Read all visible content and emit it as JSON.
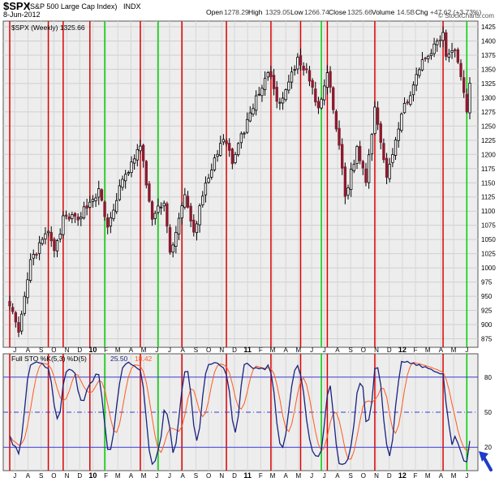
{
  "header": {
    "symbol": "$SPX",
    "name": "(S&P 500 Large Cap Index)",
    "exchange": "INDX",
    "date": "8-Jun-2012",
    "open_label": "Open",
    "open": "1278.29",
    "high_label": "High",
    "high": "1329.05",
    "low_label": "Low",
    "low": "1266.74",
    "close_label": "Close",
    "close": "1325.66",
    "volume_label": "Volume",
    "volume": "14.5B",
    "chg_label": "Chg",
    "chg": "+47.62 (+3.73%)",
    "chg_arrow": "▲",
    "watermark": "© StockCharts.com"
  },
  "price_legend": {
    "label": "$SPX (Weekly) 1325.66"
  },
  "sto_legend": {
    "label": "Full STO %K(5,3) %D(5)",
    "k_value": "25.50",
    "d_value": "18.42"
  },
  "colors": {
    "up_candle": "#ffffff",
    "down_candle": "#8b1a2e",
    "red_line": "#dd0000",
    "green_line": "#00cc00",
    "k_line": "#1a237e",
    "d_line": "#ff5a1e",
    "arrow": "#1e3cc8"
  },
  "chart_data": {
    "type": "candlestick",
    "price_panel": {
      "ylim": [
        860,
        1435
      ],
      "y_ticks": [
        875,
        900,
        925,
        950,
        975,
        1000,
        1025,
        1050,
        1075,
        1100,
        1125,
        1150,
        1175,
        1200,
        1225,
        1250,
        1275,
        1300,
        1325,
        1350,
        1375,
        1400,
        1425
      ],
      "path_dates": [
        "2009-06-19",
        "2009-07-10",
        "2009-08-07",
        "2009-09-18",
        "2009-10-02",
        "2009-10-23",
        "2009-11-27",
        "2010-01-15",
        "2010-02-05",
        "2010-03-05",
        "2010-04-23",
        "2010-05-21",
        "2010-06-18",
        "2010-07-02",
        "2010-08-06",
        "2010-08-27",
        "2010-09-24",
        "2010-11-05",
        "2010-11-26",
        "2011-01-14",
        "2011-02-18",
        "2011-03-18",
        "2011-04-29",
        "2011-05-27",
        "2011-06-17",
        "2011-07-08",
        "2011-08-12",
        "2011-08-19",
        "2011-09-16",
        "2011-10-07",
        "2011-10-28",
        "2011-11-25",
        "2012-01-06",
        "2012-02-17",
        "2012-04-06",
        "2012-04-13",
        "2012-05-04",
        "2012-06-01",
        "2012-06-08"
      ],
      "path_closes": [
        940,
        880,
        1010,
        1065,
        1025,
        1085,
        1090,
        1135,
        1070,
        1140,
        1215,
        1085,
        1120,
        1025,
        1125,
        1060,
        1150,
        1225,
        1190,
        1285,
        1345,
        1285,
        1365,
        1335,
        1275,
        1345,
        1180,
        1125,
        1210,
        1155,
        1285,
        1165,
        1285,
        1360,
        1410,
        1375,
        1390,
        1280,
        1325.66
      ]
    },
    "stochastic_panel": {
      "ylim": [
        0,
        100
      ],
      "y_ticks": [
        20,
        50,
        80
      ],
      "horizontal_lines": [
        20,
        50,
        80
      ],
      "k_value": 25.5,
      "d_value": 18.42
    },
    "x_axis": {
      "start_date": "2009-06-19",
      "end_date": "2012-06-08",
      "ticks": [
        {
          "label": "J",
          "date": "2009-07-01"
        },
        {
          "label": "A",
          "date": "2009-08-01"
        },
        {
          "label": "S",
          "date": "2009-09-01"
        },
        {
          "label": "O",
          "date": "2009-10-01"
        },
        {
          "label": "N",
          "date": "2009-11-01"
        },
        {
          "label": "D",
          "date": "2009-12-01"
        },
        {
          "label": "10",
          "date": "2010-01-01",
          "bold": true
        },
        {
          "label": "F",
          "date": "2010-02-01"
        },
        {
          "label": "M",
          "date": "2010-03-01"
        },
        {
          "label": "A",
          "date": "2010-04-01"
        },
        {
          "label": "M",
          "date": "2010-05-01"
        },
        {
          "label": "J",
          "date": "2010-06-01"
        },
        {
          "label": "J",
          "date": "2010-07-01"
        },
        {
          "label": "A",
          "date": "2010-08-01"
        },
        {
          "label": "S",
          "date": "2010-09-01"
        },
        {
          "label": "O",
          "date": "2010-10-01"
        },
        {
          "label": "N",
          "date": "2010-11-01"
        },
        {
          "label": "D",
          "date": "2010-12-01"
        },
        {
          "label": "11",
          "date": "2011-01-01",
          "bold": true
        },
        {
          "label": "F",
          "date": "2011-02-01"
        },
        {
          "label": "M",
          "date": "2011-03-01"
        },
        {
          "label": "A",
          "date": "2011-04-01"
        },
        {
          "label": "M",
          "date": "2011-05-01"
        },
        {
          "label": "J",
          "date": "2011-06-01"
        },
        {
          "label": "J",
          "date": "2011-07-01"
        },
        {
          "label": "A",
          "date": "2011-08-01"
        },
        {
          "label": "S",
          "date": "2011-09-01"
        },
        {
          "label": "O",
          "date": "2011-10-01"
        },
        {
          "label": "N",
          "date": "2011-11-01"
        },
        {
          "label": "D",
          "date": "2011-12-01"
        },
        {
          "label": "12",
          "date": "2012-01-01",
          "bold": true
        },
        {
          "label": "F",
          "date": "2012-02-01"
        },
        {
          "label": "M",
          "date": "2012-03-01"
        },
        {
          "label": "A",
          "date": "2012-04-01"
        },
        {
          "label": "M",
          "date": "2012-05-01"
        },
        {
          "label": "J",
          "date": "2012-06-01"
        }
      ]
    },
    "vertical_markers": [
      {
        "color": "red",
        "date": "2009-06-19"
      },
      {
        "color": "red",
        "date": "2009-09-18"
      },
      {
        "color": "red",
        "date": "2009-10-23"
      },
      {
        "color": "red",
        "date": "2009-12-25"
      },
      {
        "color": "green",
        "date": "2010-01-29"
      },
      {
        "color": "red",
        "date": "2010-04-23"
      },
      {
        "color": "green",
        "date": "2010-06-04"
      },
      {
        "color": "red",
        "date": "2010-07-30"
      },
      {
        "color": "red",
        "date": "2010-11-12"
      },
      {
        "color": "red",
        "date": "2011-02-25"
      },
      {
        "color": "red",
        "date": "2011-05-06"
      },
      {
        "color": "green",
        "date": "2011-06-24"
      },
      {
        "color": "red",
        "date": "2011-07-08"
      },
      {
        "color": "red",
        "date": "2011-10-28"
      },
      {
        "color": "red",
        "date": "2012-04-06"
      },
      {
        "color": "green",
        "date": "2012-06-01"
      }
    ]
  }
}
